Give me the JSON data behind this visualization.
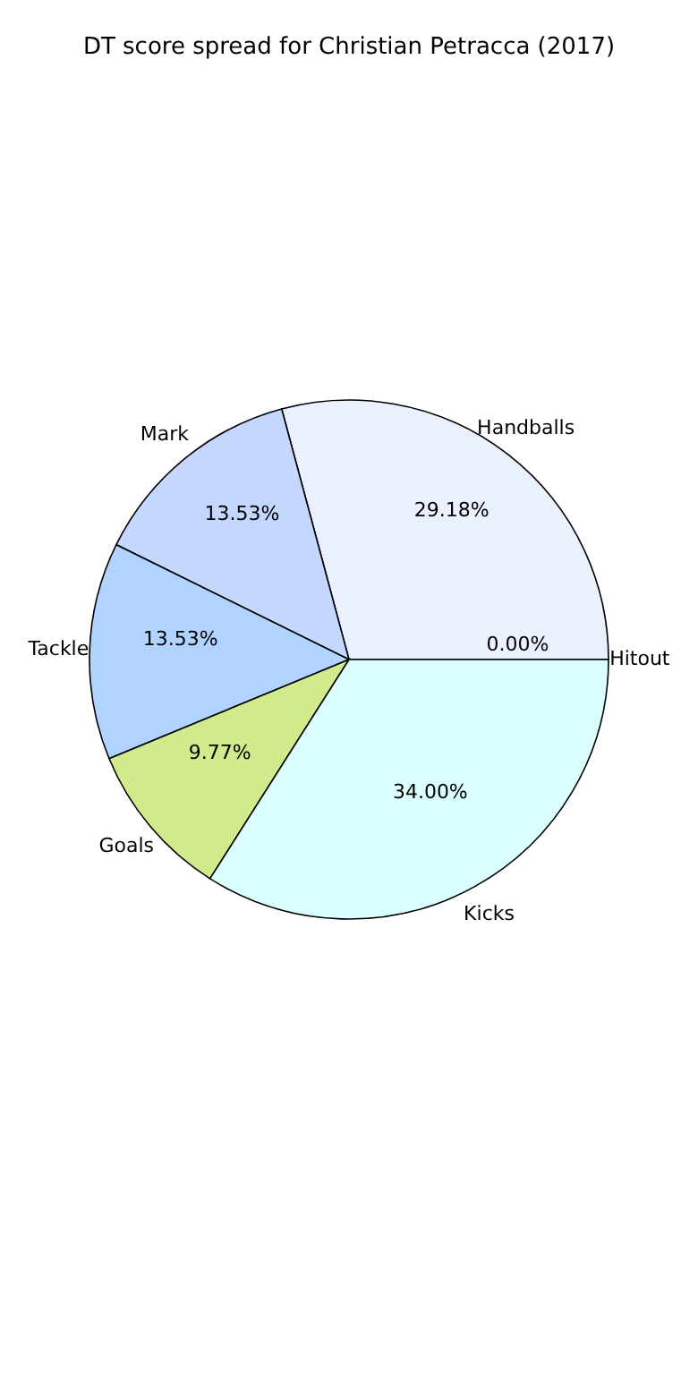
{
  "chart_data": {
    "type": "pie",
    "title": "DT score spread for Christian Petracca (2017)",
    "categories": [
      "Hitout",
      "Handballs",
      "Mark",
      "Tackle",
      "Goals",
      "Kicks"
    ],
    "values": [
      0.0,
      29.18,
      13.53,
      13.53,
      9.77,
      34.0
    ],
    "value_labels": [
      "0.00%",
      "29.18%",
      "13.53%",
      "13.53%",
      "9.77%",
      "34.00%"
    ],
    "colors": [
      "#e0f0ff",
      "#eaf0fe",
      "#c4d7ff",
      "#b0d4ff",
      "#d1ea8b",
      "#dbfefe"
    ],
    "legend": false
  }
}
